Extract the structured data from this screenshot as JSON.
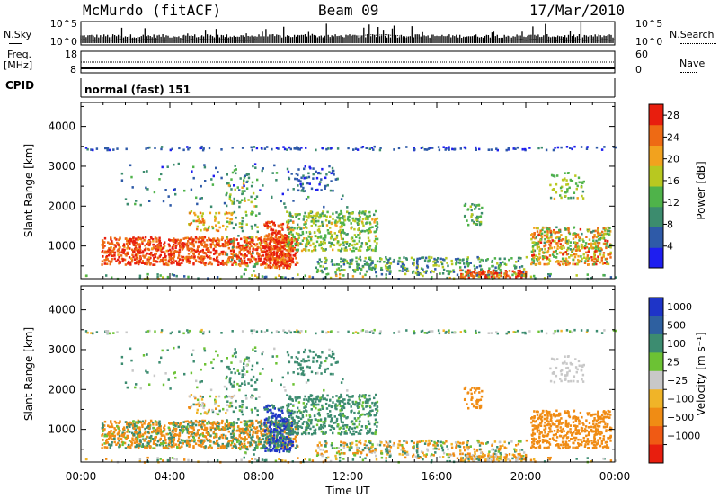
{
  "header": {
    "station": "McMurdo (fitACF)",
    "beam": "Beam 09",
    "date": "17/Mar/2010"
  },
  "strip_labels": {
    "nsky": "N.Sky",
    "nsearch": "N.Search",
    "freq_top": "Freq.",
    "freq_unit": "[MHz]",
    "nave": "Nave",
    "cpid": "CPID",
    "cpid_value": "normal (fast) 151",
    "noise_left_ticks": [
      "10^5",
      "10^0"
    ],
    "noise_right_ticks": [
      "10^5",
      "10^0"
    ],
    "freq_left_ticks": [
      "18",
      "8"
    ],
    "freq_right_ticks": [
      "60",
      "0"
    ]
  },
  "colors": {
    "power_scale": [
      "#1e1ef0",
      "#2e5aa8",
      "#3c8c6e",
      "#4fb34a",
      "#b8c820",
      "#f2a21e",
      "#ee6a14",
      "#e81e0e"
    ],
    "velocity_scale": [
      "#1e34c8",
      "#2e60a0",
      "#3c8c70",
      "#6cc234",
      "#c8c8c8",
      "#f0b428",
      "#f08c14",
      "#f05a14",
      "#e81e0e"
    ]
  },
  "chart_data": [
    {
      "type": "heatmap",
      "quantity": "Power",
      "xlabel": "",
      "ylabel": "Slant Range [km]",
      "x_ticks": [
        "00:00",
        "04:00",
        "08:00",
        "12:00",
        "16:00",
        "20:00",
        "00:00"
      ],
      "xlim_hours": [
        0,
        24
      ],
      "y_ticks": [
        1000,
        2000,
        3000,
        4000
      ],
      "ylim": [
        180,
        4600
      ],
      "colorbar_label": "Power [dB]",
      "colorbar_ticks": [
        4,
        8,
        12,
        16,
        20,
        24,
        28
      ],
      "clim": [
        0,
        30
      ]
    },
    {
      "type": "heatmap",
      "quantity": "Velocity",
      "xlabel": "Time UT",
      "ylabel": "Slant Range [km]",
      "x_ticks": [
        "00:00",
        "04:00",
        "08:00",
        "12:00",
        "16:00",
        "20:00",
        "00:00"
      ],
      "xlim_hours": [
        0,
        24
      ],
      "y_ticks": [
        1000,
        2000,
        3000,
        4000
      ],
      "ylim": [
        180,
        4600
      ],
      "colorbar_label": "Velocity [m s⁻¹]",
      "colorbar_ticks": [
        "1000",
        "500",
        "100",
        "25",
        "−25",
        "−100",
        "−500",
        "−1000"
      ]
    }
  ]
}
